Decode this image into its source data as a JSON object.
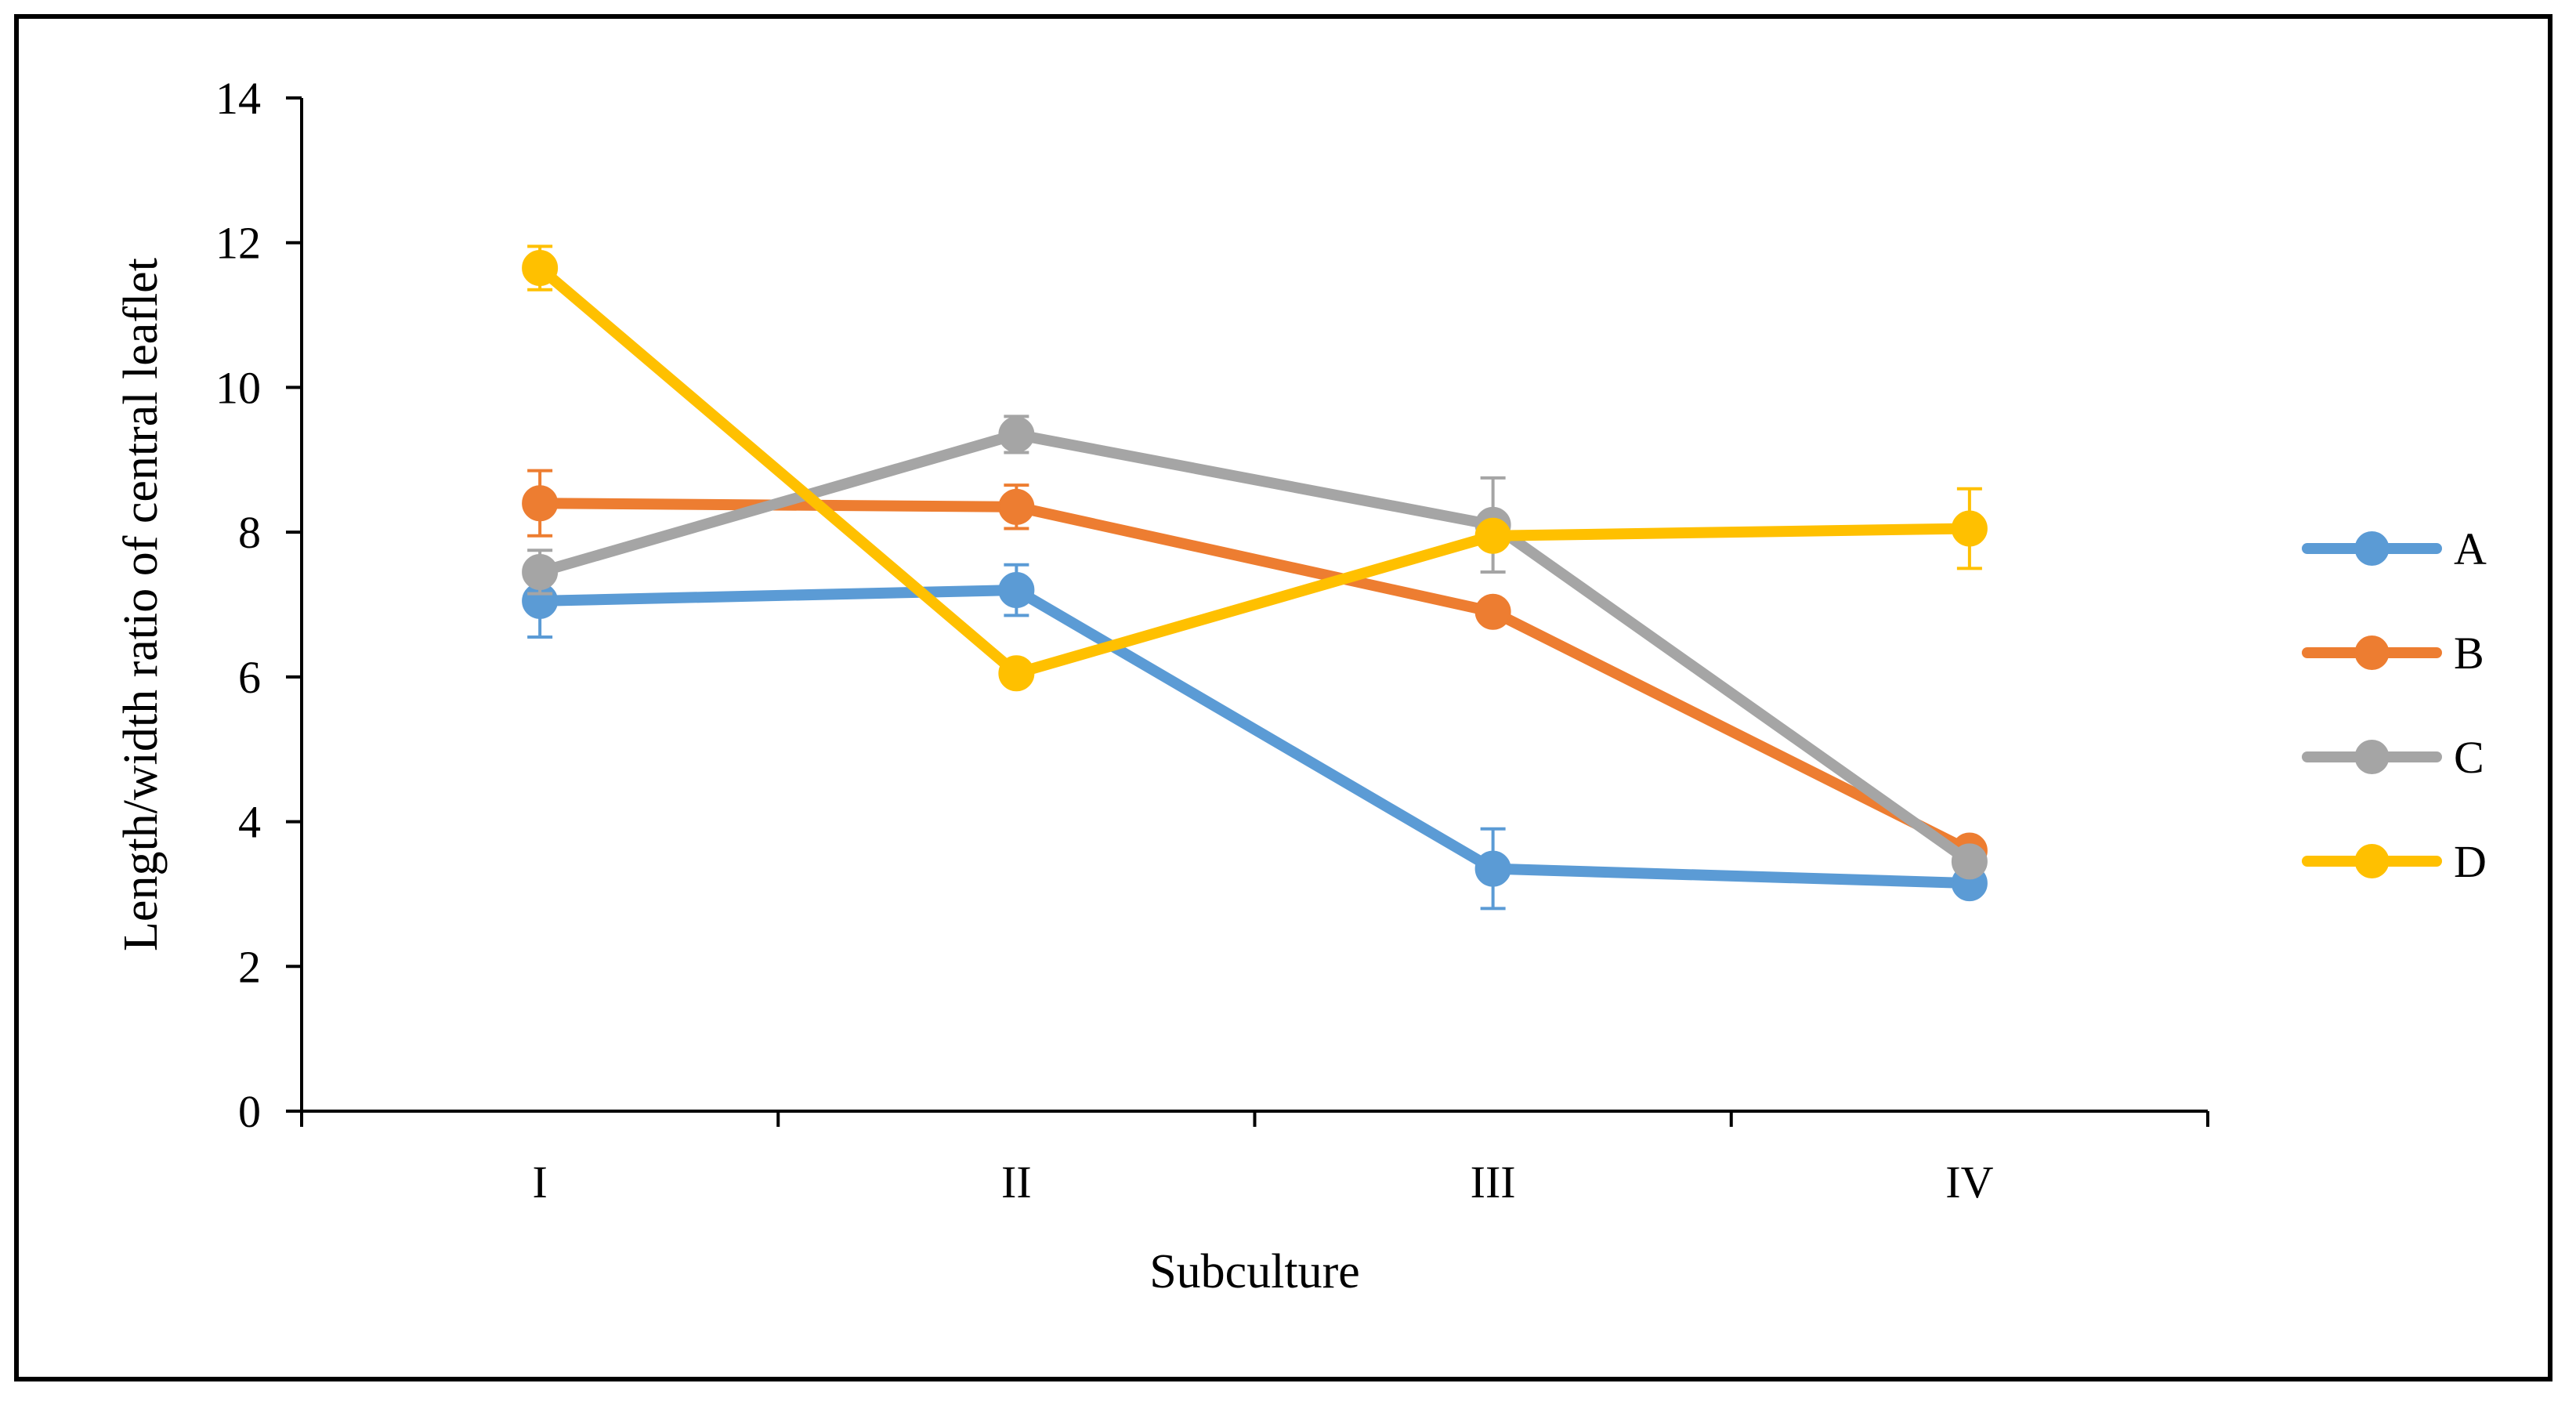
{
  "chart_data": {
    "type": "line",
    "title": "",
    "xlabel": "Subculture",
    "ylabel": "Length/width ratio of central leaflet",
    "categories": [
      "I",
      "II",
      "III",
      "IV"
    ],
    "ylim": [
      0,
      14
    ],
    "yticks": [
      0,
      2,
      4,
      6,
      8,
      10,
      12,
      14
    ],
    "legend_position": "right",
    "grid": false,
    "series": [
      {
        "name": "A",
        "color": "#5B9BD5",
        "values": [
          7.05,
          7.2,
          3.35,
          3.15
        ],
        "errors": [
          0.5,
          0.35,
          0.55,
          0.1
        ]
      },
      {
        "name": "B",
        "color": "#ED7D31",
        "values": [
          8.4,
          8.35,
          6.9,
          3.6
        ],
        "errors": [
          0.45,
          0.3,
          0.15,
          0.1
        ]
      },
      {
        "name": "C",
        "color": "#A5A5A5",
        "values": [
          7.45,
          9.35,
          8.1,
          3.45
        ],
        "errors": [
          0.3,
          0.25,
          0.65,
          0.1
        ]
      },
      {
        "name": "D",
        "color": "#FFC000",
        "values": [
          11.65,
          6.05,
          7.95,
          8.05
        ],
        "errors": [
          0.3,
          0.1,
          0.1,
          0.55
        ]
      }
    ]
  }
}
